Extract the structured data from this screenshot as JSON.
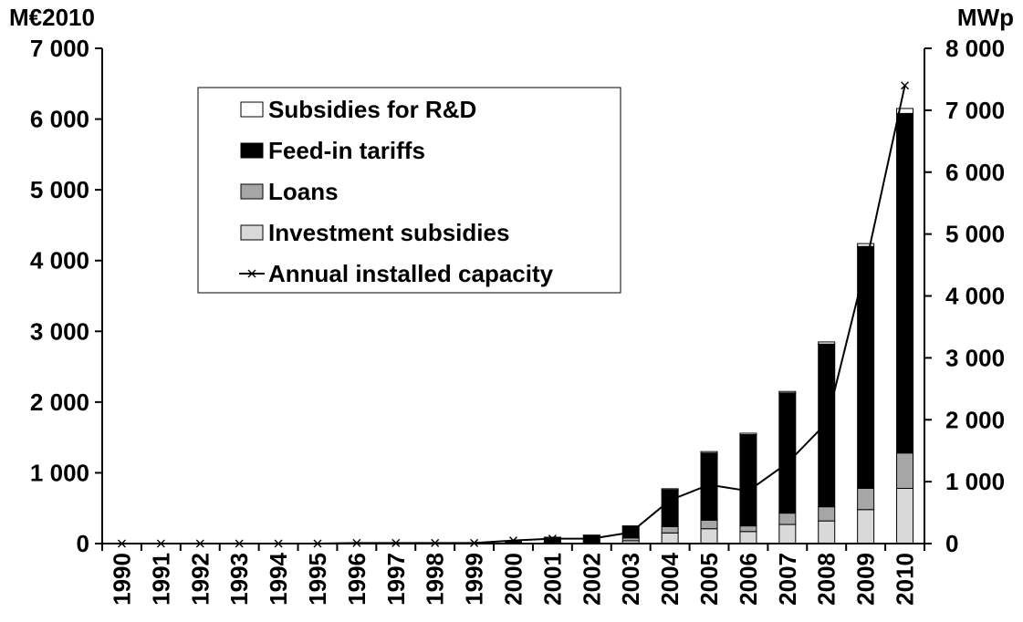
{
  "chart_data": {
    "type": "bar",
    "left_axis_unit": "M€2010",
    "right_axis_unit": "MWp",
    "categories": [
      "1990",
      "1991",
      "1992",
      "1993",
      "1994",
      "1995",
      "1996",
      "1997",
      "1998",
      "1999",
      "2000",
      "2001",
      "2002",
      "2003",
      "2004",
      "2005",
      "2006",
      "2007",
      "2008",
      "2009",
      "2010"
    ],
    "ylim_left": [
      0,
      7000
    ],
    "ylim_right": [
      0,
      8000
    ],
    "yticks_left": [
      "0",
      "1 000",
      "2 000",
      "3 000",
      "4 000",
      "5 000",
      "6 000",
      "7 000"
    ],
    "yticks_right": [
      "0",
      "1 000",
      "2 000",
      "3 000",
      "4 000",
      "5 000",
      "6 000",
      "7 000",
      "8 000"
    ],
    "stacked": true,
    "series": [
      {
        "name": "Investment subsidies",
        "axis": "left",
        "color": "#d9d9d9",
        "values": [
          0,
          0,
          0,
          0,
          0,
          0,
          0,
          0,
          0,
          5,
          10,
          20,
          20,
          40,
          150,
          210,
          170,
          270,
          320,
          480,
          780
        ]
      },
      {
        "name": "Loans",
        "axis": "left",
        "color": "#a6a6a6",
        "values": [
          0,
          0,
          0,
          0,
          0,
          0,
          0,
          0,
          0,
          0,
          0,
          5,
          5,
          40,
          90,
          120,
          80,
          160,
          200,
          300,
          500
        ]
      },
      {
        "name": "Feed-in tariffs",
        "axis": "left",
        "color": "#000000",
        "values": [
          0,
          0,
          0,
          0,
          0,
          0,
          0,
          0,
          0,
          5,
          20,
          60,
          90,
          160,
          520,
          950,
          1290,
          1700,
          2300,
          3420,
          4800
        ]
      },
      {
        "name": "Subsidies for R&D",
        "axis": "left",
        "color": "#ffffff",
        "values": [
          0,
          0,
          0,
          0,
          0,
          0,
          0,
          0,
          0,
          0,
          0,
          5,
          5,
          10,
          15,
          20,
          20,
          20,
          30,
          40,
          70
        ]
      },
      {
        "name": "Annual installed capacity",
        "axis": "right",
        "type": "line",
        "color": "#000000",
        "values": [
          0,
          0,
          0,
          0,
          0,
          0,
          10,
          10,
          10,
          10,
          50,
          80,
          80,
          180,
          700,
          950,
          850,
          1300,
          1950,
          4500,
          7400
        ]
      }
    ],
    "legend": {
      "position": "top-left",
      "order": [
        "Subsidies for R&D",
        "Feed-in tariffs",
        "Loans",
        "Investment subsidies",
        "Annual installed capacity"
      ]
    }
  }
}
